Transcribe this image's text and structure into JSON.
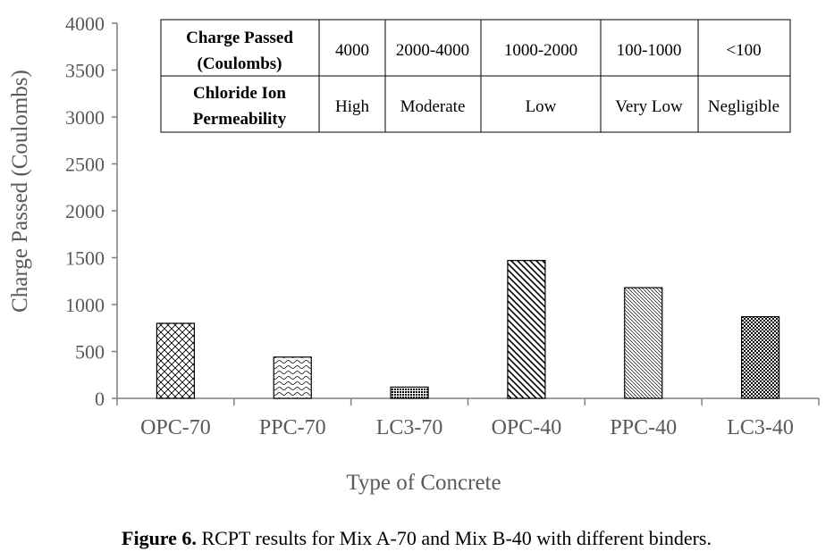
{
  "chart_data": {
    "type": "bar",
    "categories": [
      "OPC-70",
      "PPC-70",
      "LC3-70",
      "OPC-40",
      "PPC-40",
      "LC3-40"
    ],
    "values": [
      800,
      440,
      120,
      1470,
      1180,
      870
    ],
    "xlabel": "Type of Concrete",
    "ylabel": "Charge Passed (Coulombs)",
    "ylim": [
      0,
      4000
    ],
    "yticks": [
      "0",
      "500",
      "1000",
      "1500",
      "2000",
      "2500",
      "3000",
      "3500",
      "4000"
    ],
    "grid": false,
    "legend": "none",
    "bar_patterns": [
      "crosshatch",
      "horizontal-wave",
      "dense-dots",
      "diagonal-lines",
      "fine-diagonal",
      "checker"
    ]
  },
  "table": {
    "header_row": [
      "Charge Passed (Coulombs)",
      "4000",
      "2000-4000",
      "1000-2000",
      "100-1000",
      "<100"
    ],
    "header_row_lines": [
      "Charge Passed",
      "(Coulombs)"
    ],
    "data_row": [
      "Chloride Ion Permeability",
      "High",
      "Moderate",
      "Low",
      "Very Low",
      "Negligible"
    ],
    "data_row_lines": [
      "Chloride Ion",
      "Permeability"
    ]
  },
  "caption": {
    "label": "Figure 6.",
    "text": " RCPT results for Mix A-70 and Mix B-40 with different binders."
  },
  "colors": {
    "axis": "#7f7f7f",
    "bar_stroke": "#000000",
    "text": "#595959"
  }
}
